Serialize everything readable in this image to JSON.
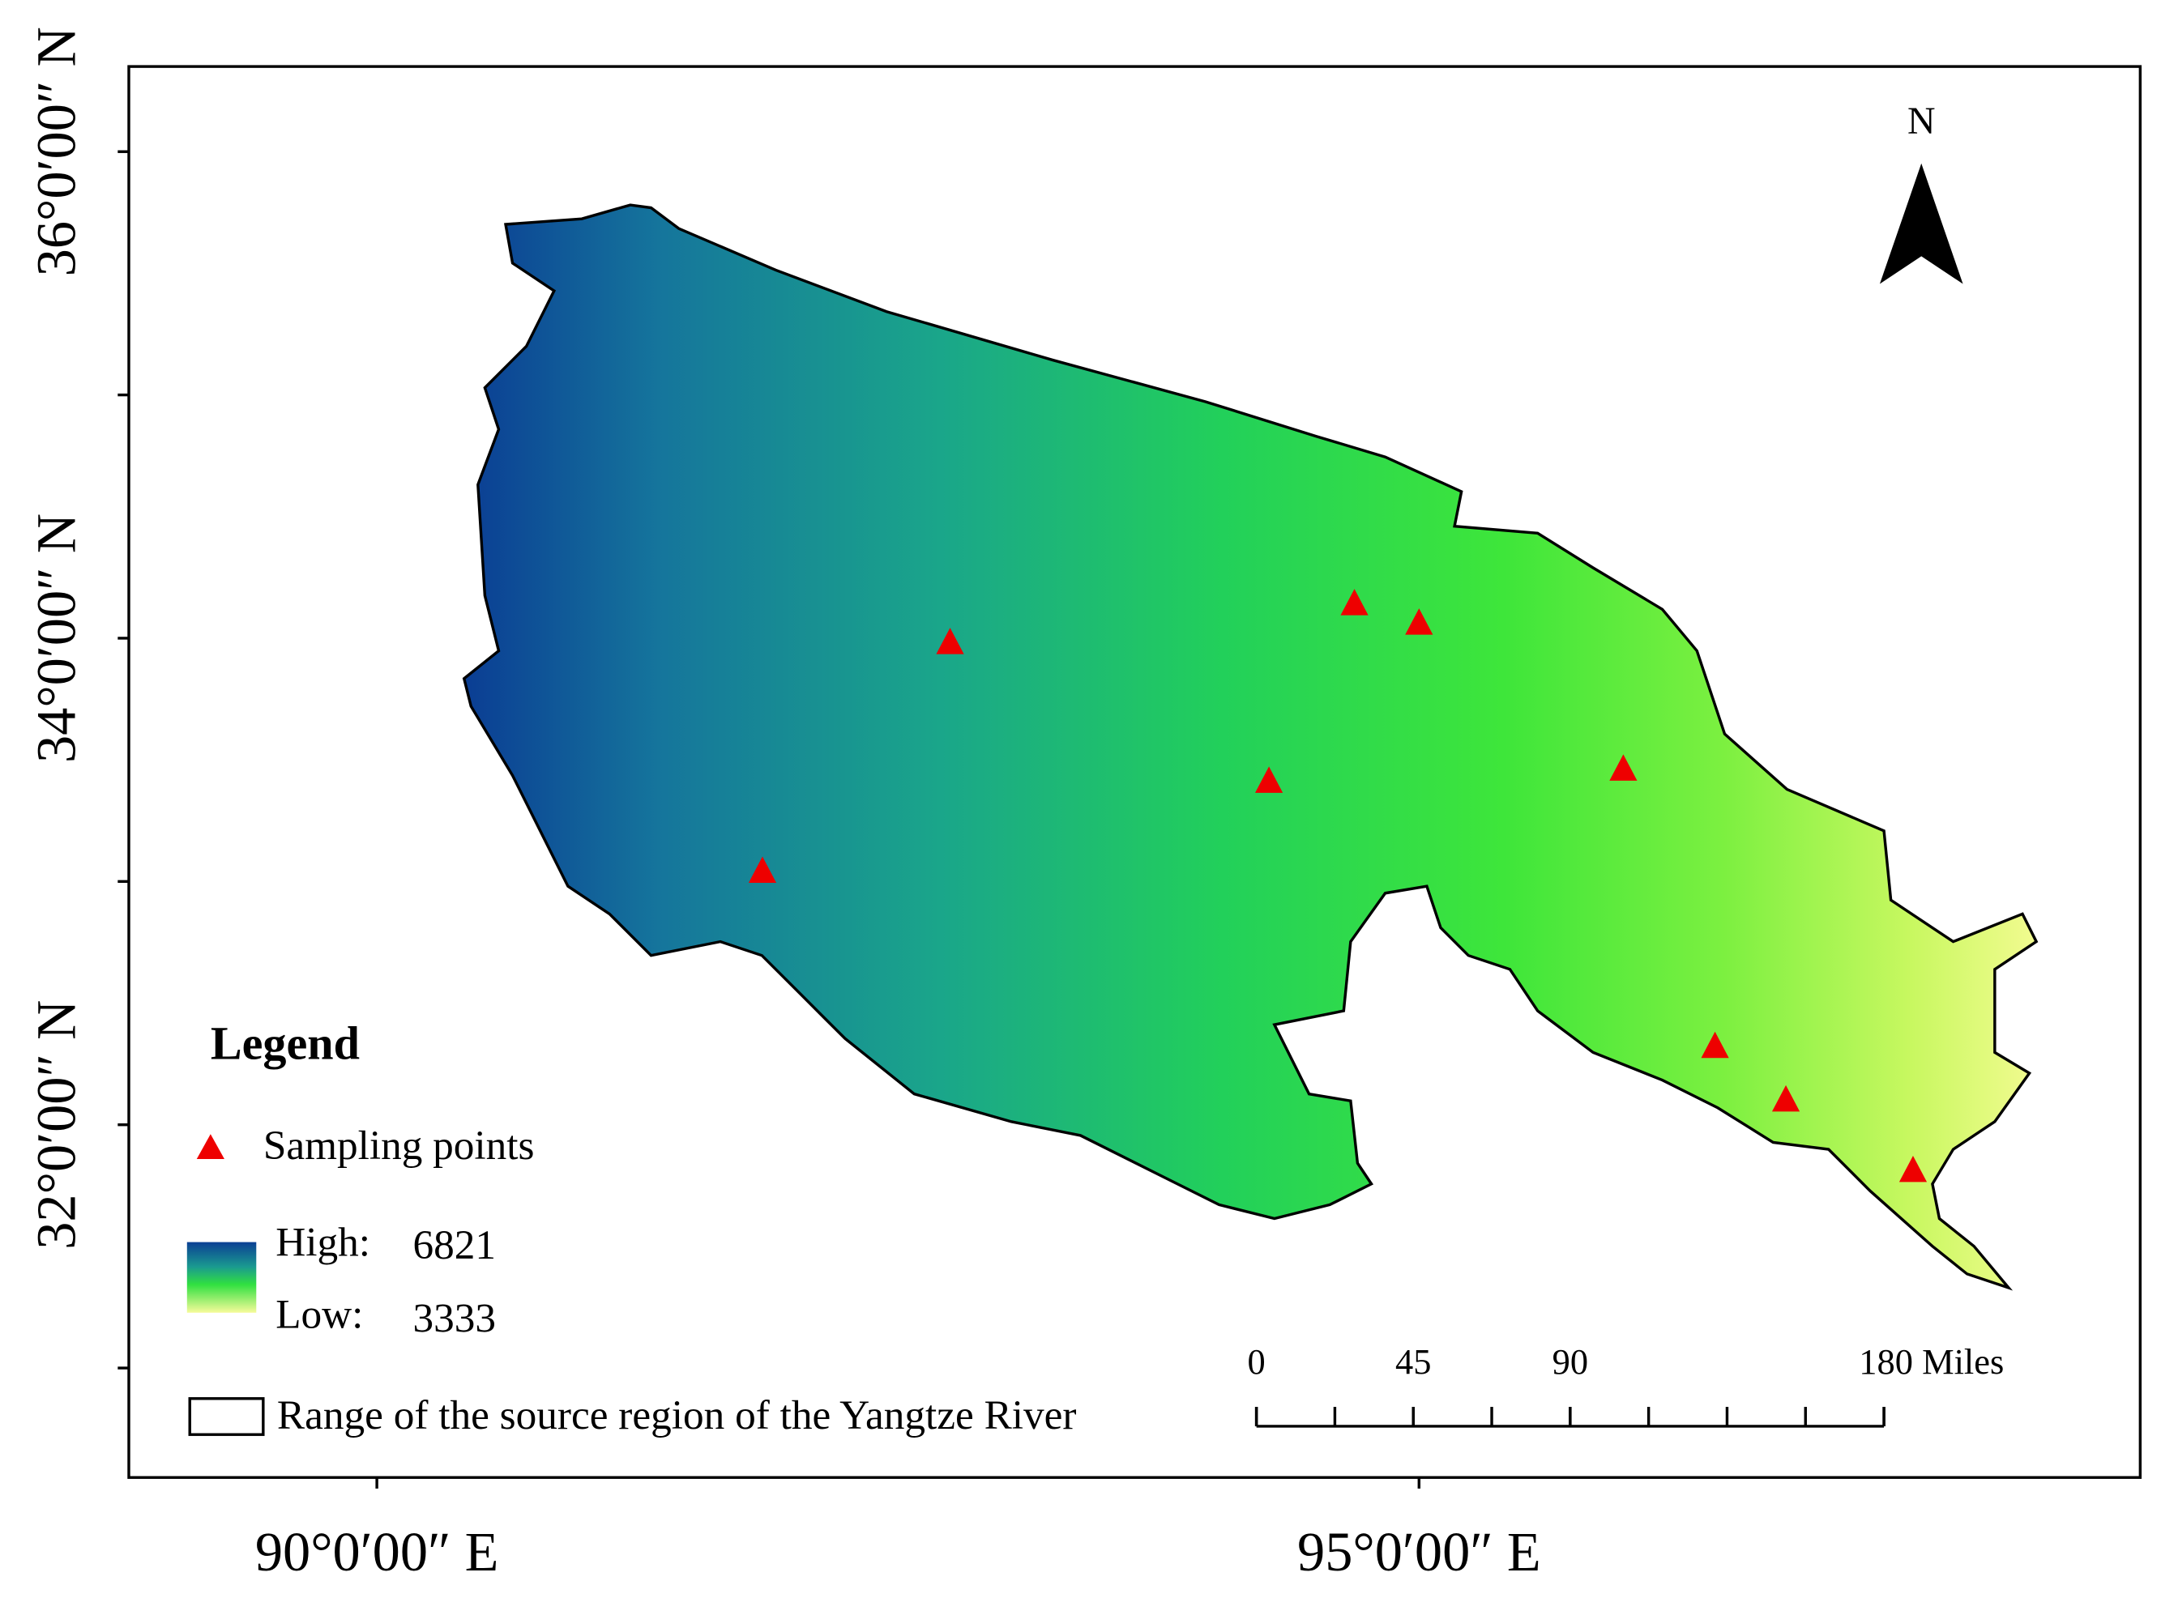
{
  "map": {
    "north_label": "N",
    "xlim": [
      88.81,
      98.46
    ],
    "ylim": [
      30.55,
      36.35
    ],
    "xticks": [
      {
        "value": 90,
        "label": "90°0′00″ E"
      },
      {
        "value": 95,
        "label": "95°0′00″ E"
      }
    ],
    "yticks": [
      {
        "value": 36,
        "label": "36°0′00″ N"
      },
      {
        "value": 35,
        "label": null
      },
      {
        "value": 34,
        "label": "34°0′00″ N"
      },
      {
        "value": 33,
        "label": null
      },
      {
        "value": 32,
        "label": "32°0′00″ N"
      },
      {
        "value": 31,
        "label": null
      }
    ],
    "sampling_points": {
      "name": "Sampling points",
      "color": "#ee0000",
      "lon": [
        91.85,
        92.75,
        94.28,
        94.69,
        95.0,
        95.98,
        96.42,
        96.76,
        97.37
      ],
      "lat": [
        33.04,
        33.98,
        33.41,
        34.14,
        34.06,
        33.46,
        32.32,
        32.1,
        31.81
      ]
    },
    "legend": {
      "title": "Legend",
      "high_label": "High:",
      "high_value": 6821,
      "low_label": "Low:",
      "low_value": 3333,
      "range_label": "Range of the source region of the Yangtze River"
    },
    "scale_bar": {
      "ticks": [
        0,
        45,
        90,
        {
          "value": 180,
          "label": "180 Miles"
        }
      ]
    }
  }
}
